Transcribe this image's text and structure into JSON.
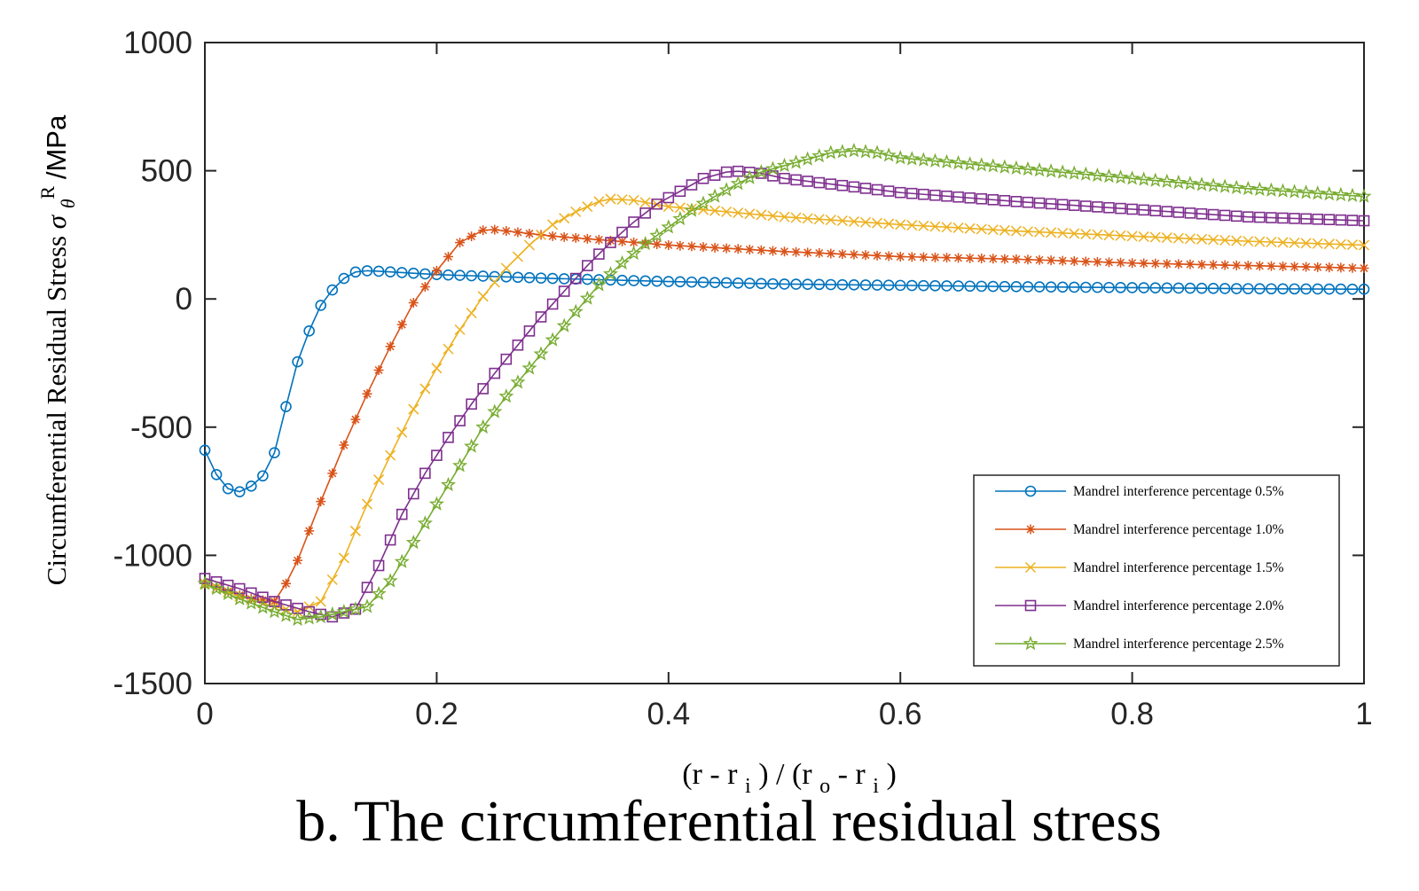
{
  "caption": "b. The circumferential residual stress",
  "chart_data": {
    "type": "line",
    "xlabel": {
      "base1": "(r - r",
      "sub1": "i",
      "mid": ") / (r",
      "sub2": "o",
      "mid2": " - r",
      "sub3": "i",
      "end": ")"
    },
    "ylabel": {
      "prefix": "Circumferential Residual Stress ",
      "symbol": "σ",
      "subscript": "θ",
      "superscript": "R",
      "suffix": "  /MPa"
    },
    "xlim": [
      0,
      1
    ],
    "ylim": [
      -1500,
      1000
    ],
    "x_ticks": [
      0,
      0.2,
      0.4,
      0.6,
      0.8,
      1
    ],
    "x_tick_labels": [
      "0",
      "0.2",
      "0.4",
      "0.6",
      "0.8",
      "1"
    ],
    "y_ticks": [
      1000,
      500,
      0,
      -500,
      -1000,
      -1500
    ],
    "y_tick_labels": [
      "1000",
      "500",
      "0",
      "-500",
      "-1000",
      "-1500"
    ],
    "grid": false,
    "legend_position": "bottom-right",
    "series": [
      {
        "name": "Mandrel interference percentage 0.5%",
        "color": "#0072BD",
        "marker": "circle",
        "x": [
          0,
          0.01,
          0.02,
          0.03,
          0.04,
          0.05,
          0.06,
          0.07,
          0.08,
          0.09,
          0.1,
          0.11,
          0.12,
          0.13,
          0.14,
          0.15,
          0.2,
          0.3,
          0.4,
          0.5,
          0.6,
          0.7,
          0.8,
          0.9,
          1.0
        ],
        "y": [
          -590,
          -685,
          -740,
          -752,
          -730,
          -690,
          -600,
          -420,
          -245,
          -125,
          -25,
          35,
          80,
          105,
          110,
          108,
          95,
          80,
          68,
          58,
          53,
          48,
          44,
          40,
          38
        ]
      },
      {
        "name": "Mandrel interference percentage 1.0%",
        "color": "#D95319",
        "marker": "asterisk",
        "x": [
          0,
          0.02,
          0.04,
          0.06,
          0.07,
          0.08,
          0.1,
          0.12,
          0.14,
          0.16,
          0.18,
          0.2,
          0.22,
          0.24,
          0.25,
          0.3,
          0.4,
          0.5,
          0.6,
          0.7,
          0.8,
          0.9,
          1.0
        ],
        "y": [
          -1110,
          -1140,
          -1170,
          -1180,
          -1110,
          -1020,
          -790,
          -570,
          -370,
          -185,
          -15,
          110,
          220,
          268,
          270,
          245,
          210,
          185,
          165,
          155,
          140,
          130,
          120
        ]
      },
      {
        "name": "Mandrel interference percentage 1.5%",
        "color": "#EDB120",
        "marker": "x",
        "x": [
          0,
          0.03,
          0.06,
          0.08,
          0.1,
          0.12,
          0.14,
          0.16,
          0.18,
          0.2,
          0.22,
          0.24,
          0.26,
          0.28,
          0.3,
          0.32,
          0.34,
          0.35,
          0.37,
          0.4,
          0.5,
          0.6,
          0.7,
          0.8,
          0.9,
          1.0
        ],
        "y": [
          -1110,
          -1160,
          -1200,
          -1220,
          -1180,
          -1010,
          -800,
          -610,
          -430,
          -270,
          -120,
          10,
          120,
          210,
          290,
          340,
          380,
          390,
          385,
          360,
          320,
          290,
          265,
          245,
          225,
          210
        ]
      },
      {
        "name": "Mandrel interference percentage 2.0%",
        "color": "#7E2F8E",
        "marker": "square",
        "x": [
          0,
          0.03,
          0.06,
          0.09,
          0.11,
          0.13,
          0.15,
          0.17,
          0.19,
          0.21,
          0.23,
          0.25,
          0.27,
          0.29,
          0.31,
          0.33,
          0.35,
          0.37,
          0.39,
          0.41,
          0.43,
          0.45,
          0.46,
          0.48,
          0.5,
          0.6,
          0.7,
          0.8,
          0.9,
          1.0
        ],
        "y": [
          -1090,
          -1130,
          -1180,
          -1220,
          -1240,
          -1210,
          -1040,
          -840,
          -680,
          -540,
          -410,
          -290,
          -180,
          -70,
          30,
          130,
          220,
          300,
          370,
          420,
          470,
          495,
          498,
          490,
          470,
          415,
          380,
          350,
          320,
          305
        ]
      },
      {
        "name": "Mandrel interference percentage 2.5%",
        "color": "#77AC30",
        "marker": "pentagram",
        "x": [
          0,
          0.03,
          0.06,
          0.08,
          0.1,
          0.12,
          0.14,
          0.16,
          0.18,
          0.2,
          0.22,
          0.24,
          0.26,
          0.28,
          0.3,
          0.32,
          0.34,
          0.36,
          0.38,
          0.4,
          0.42,
          0.44,
          0.46,
          0.48,
          0.5,
          0.52,
          0.54,
          0.56,
          0.58,
          0.6,
          0.7,
          0.8,
          0.9,
          1.0
        ],
        "y": [
          -1110,
          -1170,
          -1220,
          -1250,
          -1240,
          -1220,
          -1200,
          -1100,
          -950,
          -800,
          -650,
          -500,
          -380,
          -270,
          -160,
          -50,
          55,
          140,
          215,
          280,
          345,
          400,
          450,
          495,
          520,
          545,
          570,
          578,
          570,
          550,
          510,
          470,
          430,
          400
        ]
      }
    ]
  }
}
